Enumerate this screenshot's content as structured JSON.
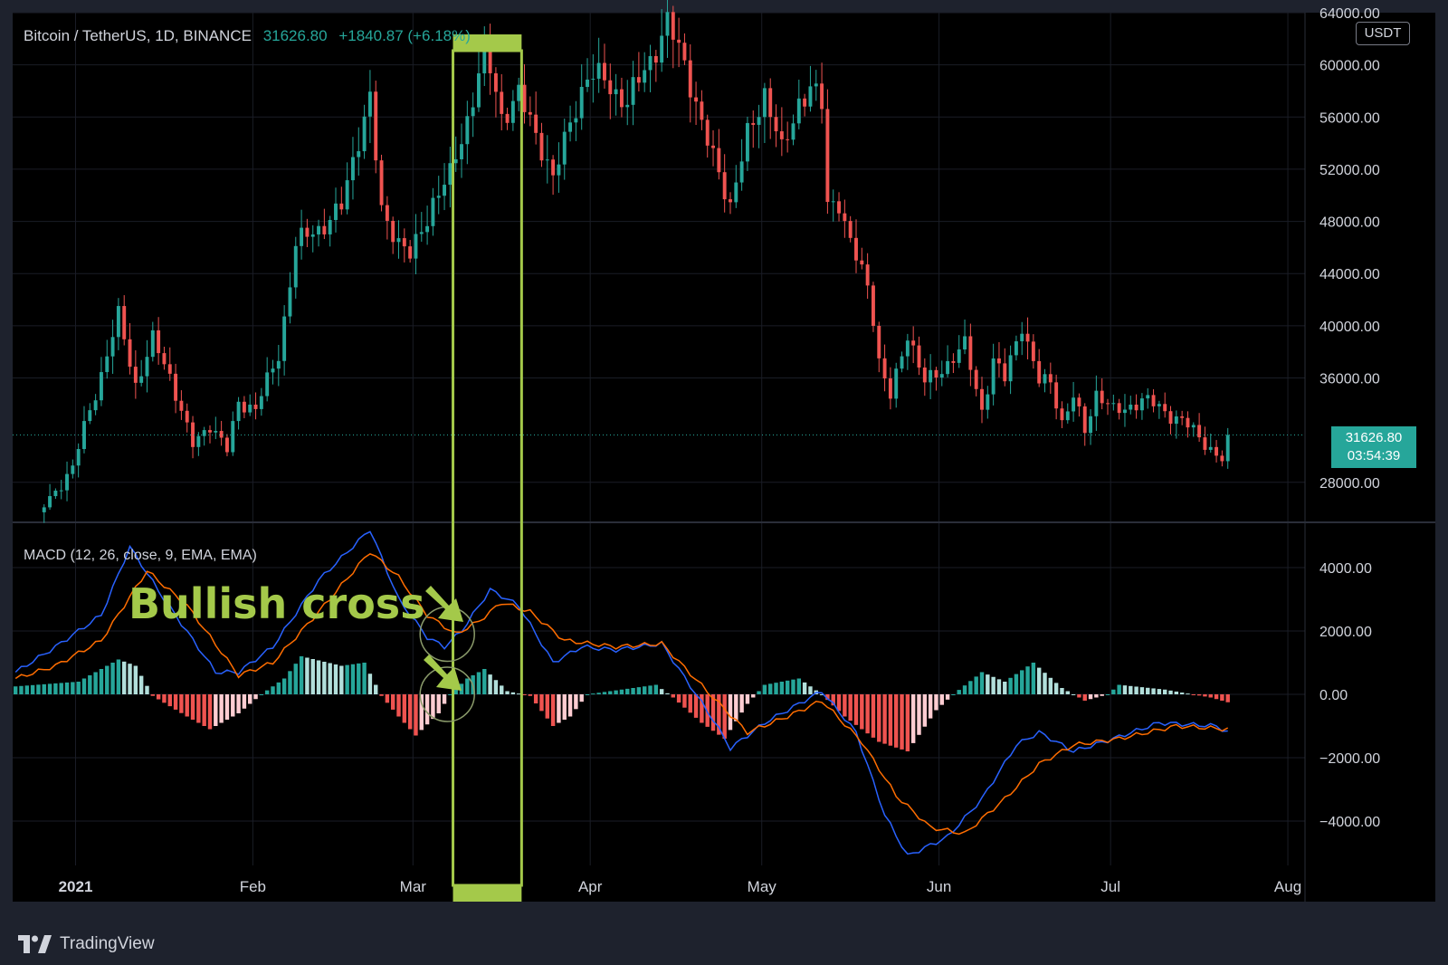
{
  "header": {
    "symbol": "Bitcoin / TetherUS, 1D, BINANCE",
    "last_price": "31626.80",
    "change": "+1840.87 (+6.18%)"
  },
  "currency_badge": "USDT",
  "price_badge": {
    "price": "31626.80",
    "countdown": "03:54:39"
  },
  "macd_legend": "MACD (12, 26, close, 9, EMA, EMA)",
  "annotation": {
    "text": "Bullish cross"
  },
  "footer": {
    "brand": "TradingView"
  },
  "colors": {
    "up": "#26a69a",
    "down": "#ef5350",
    "macd_line": "#2962ff",
    "signal_line": "#ff6d00",
    "highlight": "#a4c94a",
    "background": "#000000"
  },
  "chart_data": [
    {
      "type": "candlestick",
      "title": "Bitcoin / TetherUS, 1D, BINANCE",
      "x_ticks": [
        "2021",
        "Feb",
        "Mar",
        "Apr",
        "May",
        "Jun",
        "Jul",
        "Aug"
      ],
      "y_ticks": [
        "64000.00",
        "60000.00",
        "56000.00",
        "52000.00",
        "48000.00",
        "44000.00",
        "40000.00",
        "36000.00",
        "28000.00"
      ],
      "ylim": [
        25000,
        64000
      ],
      "x_range": [
        "2020-12-21",
        "2021-08-04"
      ],
      "last_close": 31626.8,
      "highlight_period": [
        "2021-03-08",
        "2021-03-20"
      ],
      "close_anchors": [
        [
          "2020-12-26",
          26300
        ],
        [
          "2020-12-31",
          29000
        ],
        [
          "2021-01-02",
          32200
        ],
        [
          "2021-01-08",
          40600
        ],
        [
          "2021-01-11",
          35500
        ],
        [
          "2021-01-14",
          39000
        ],
        [
          "2021-01-17",
          36000
        ],
        [
          "2021-01-21",
          31000
        ],
        [
          "2021-01-24",
          32300
        ],
        [
          "2021-01-27",
          30500
        ],
        [
          "2021-01-29",
          34300
        ],
        [
          "2021-02-01",
          33500
        ],
        [
          "2021-02-05",
          37900
        ],
        [
          "2021-02-08",
          46200
        ],
        [
          "2021-02-12",
          47400
        ],
        [
          "2021-02-16",
          49200
        ],
        [
          "2021-02-21",
          57500
        ],
        [
          "2021-02-23",
          48900
        ],
        [
          "2021-02-26",
          46300
        ],
        [
          "2021-02-28",
          45300
        ],
        [
          "2021-03-04",
          49600
        ],
        [
          "2021-03-07",
          51300
        ],
        [
          "2021-03-10",
          56000
        ],
        [
          "2021-03-13",
          61200
        ],
        [
          "2021-03-16",
          55900
        ],
        [
          "2021-03-19",
          58000
        ],
        [
          "2021-03-22",
          54500
        ],
        [
          "2021-03-25",
          51300
        ],
        [
          "2021-03-28",
          55800
        ],
        [
          "2021-03-31",
          58800
        ],
        [
          "2021-04-03",
          59200
        ],
        [
          "2021-04-07",
          56800
        ],
        [
          "2021-04-10",
          59700
        ],
        [
          "2021-04-14",
          63200
        ],
        [
          "2021-04-17",
          60000
        ],
        [
          "2021-04-20",
          55600
        ],
        [
          "2021-04-23",
          51700
        ],
        [
          "2021-04-25",
          49000
        ],
        [
          "2021-04-28",
          54800
        ],
        [
          "2021-05-01",
          57800
        ],
        [
          "2021-05-04",
          53200
        ],
        [
          "2021-05-07",
          57400
        ],
        [
          "2021-05-09",
          58200
        ],
        [
          "2021-05-11",
          56700
        ],
        [
          "2021-05-12",
          49200
        ],
        [
          "2021-05-14",
          49700
        ],
        [
          "2021-05-16",
          46400
        ],
        [
          "2021-05-19",
          42900
        ],
        [
          "2021-05-20",
          40600
        ],
        [
          "2021-05-21",
          37300
        ],
        [
          "2021-05-23",
          34700
        ],
        [
          "2021-05-26",
          39300
        ],
        [
          "2021-05-29",
          35700
        ],
        [
          "2021-06-01",
          36700
        ],
        [
          "2021-06-05",
          38400
        ],
        [
          "2021-06-08",
          33600
        ],
        [
          "2021-06-10",
          37400
        ],
        [
          "2021-06-12",
          35800
        ],
        [
          "2021-06-15",
          40200
        ],
        [
          "2021-06-18",
          35800
        ],
        [
          "2021-06-20",
          35600
        ],
        [
          "2021-06-22",
          32500
        ],
        [
          "2021-06-24",
          34700
        ],
        [
          "2021-06-26",
          32000
        ],
        [
          "2021-06-28",
          34700
        ],
        [
          "2021-07-01",
          33500
        ],
        [
          "2021-07-06",
          34200
        ],
        [
          "2021-07-09",
          33800
        ],
        [
          "2021-07-13",
          32700
        ],
        [
          "2021-07-16",
          31400
        ],
        [
          "2021-07-20",
          29800
        ],
        [
          "2021-07-21",
          31626.8
        ]
      ]
    },
    {
      "type": "macd",
      "title": "MACD (12, 26, close, 9, EMA, EMA)",
      "y_ticks": [
        "4000.00",
        "2000.00",
        "0.00",
        "−2000.00",
        "−4000.00"
      ],
      "ylim": [
        -5400,
        5400
      ],
      "x_range": [
        "2020-12-21",
        "2021-08-04"
      ],
      "series": [
        {
          "name": "MACD",
          "points": [
            [
              "2020-12-21",
              700
            ],
            [
              "2020-12-28",
              1500
            ],
            [
              "2021-01-05",
              2500
            ],
            [
              "2021-01-10",
              4650
            ],
            [
              "2021-01-16",
              3000
            ],
            [
              "2021-01-25",
              700
            ],
            [
              "2021-01-29",
              700
            ],
            [
              "2021-02-04",
              1500
            ],
            [
              "2021-02-12",
              3600
            ],
            [
              "2021-02-21",
              5200
            ],
            [
              "2021-02-26",
              3000
            ],
            [
              "2021-03-03",
              1800
            ],
            [
              "2021-03-06",
              1500
            ],
            [
              "2021-03-09",
              2000
            ],
            [
              "2021-03-14",
              3300
            ],
            [
              "2021-03-19",
              2800
            ],
            [
              "2021-03-25",
              1000
            ],
            [
              "2021-03-30",
              1500
            ],
            [
              "2021-04-05",
              1400
            ],
            [
              "2021-04-13",
              1600
            ],
            [
              "2021-04-22",
              -800
            ],
            [
              "2021-04-25",
              -1700
            ],
            [
              "2021-05-01",
              -900
            ],
            [
              "2021-05-07",
              -300
            ],
            [
              "2021-05-11",
              100
            ],
            [
              "2021-05-17",
              -1200
            ],
            [
              "2021-05-22",
              -3800
            ],
            [
              "2021-05-26",
              -5100
            ],
            [
              "2021-06-02",
              -4500
            ],
            [
              "2021-06-08",
              -3300
            ],
            [
              "2021-06-14",
              -1600
            ],
            [
              "2021-06-18",
              -1200
            ],
            [
              "2021-06-24",
              -1800
            ],
            [
              "2021-07-01",
              -1400
            ],
            [
              "2021-07-09",
              -900
            ],
            [
              "2021-07-19",
              -1000
            ],
            [
              "2021-07-21",
              -1200
            ]
          ]
        },
        {
          "name": "Signal",
          "points": [
            [
              "2020-12-21",
              500
            ],
            [
              "2020-12-28",
              900
            ],
            [
              "2021-01-05",
              1700
            ],
            [
              "2021-01-13",
              3900
            ],
            [
              "2021-01-20",
              2800
            ],
            [
              "2021-01-29",
              600
            ],
            [
              "2021-02-04",
              1000
            ],
            [
              "2021-02-12",
              2600
            ],
            [
              "2021-02-21",
              4500
            ],
            [
              "2021-02-26",
              3700
            ],
            [
              "2021-03-03",
              2500
            ],
            [
              "2021-03-08",
              1900
            ],
            [
              "2021-03-12",
              2300
            ],
            [
              "2021-03-16",
              2900
            ],
            [
              "2021-03-21",
              2600
            ],
            [
              "2021-03-27",
              1700
            ],
            [
              "2021-04-05",
              1500
            ],
            [
              "2021-04-13",
              1600
            ],
            [
              "2021-04-22",
              -100
            ],
            [
              "2021-04-28",
              -1200
            ],
            [
              "2021-05-05",
              -700
            ],
            [
              "2021-05-11",
              -200
            ],
            [
              "2021-05-18",
              -1500
            ],
            [
              "2021-05-24",
              -3200
            ],
            [
              "2021-05-30",
              -4200
            ],
            [
              "2021-06-05",
              -4400
            ],
            [
              "2021-06-12",
              -3300
            ],
            [
              "2021-06-18",
              -2200
            ],
            [
              "2021-06-24",
              -1600
            ],
            [
              "2021-07-02",
              -1400
            ],
            [
              "2021-07-12",
              -1000
            ],
            [
              "2021-07-21",
              -1100
            ]
          ]
        }
      ],
      "histogram": [
        [
          "2020-12-21",
          250
        ],
        [
          "2021-01-01",
          400
        ],
        [
          "2021-01-08",
          1100
        ],
        [
          "2021-01-11",
          900
        ],
        [
          "2021-01-14",
          -50
        ],
        [
          "2021-01-20",
          -700
        ],
        [
          "2021-01-24",
          -1100
        ],
        [
          "2021-01-29",
          -600
        ],
        [
          "2021-02-02",
          0
        ],
        [
          "2021-02-06",
          500
        ],
        [
          "2021-02-09",
          1200
        ],
        [
          "2021-02-16",
          900
        ],
        [
          "2021-02-20",
          1000
        ],
        [
          "2021-02-23",
          -50
        ],
        [
          "2021-02-26",
          -700
        ],
        [
          "2021-03-01",
          -1300
        ],
        [
          "2021-03-05",
          -600
        ],
        [
          "2021-03-07",
          0
        ],
        [
          "2021-03-10",
          500
        ],
        [
          "2021-03-13",
          800
        ],
        [
          "2021-03-17",
          100
        ],
        [
          "2021-03-21",
          -50
        ],
        [
          "2021-03-25",
          -1000
        ],
        [
          "2021-03-28",
          -700
        ],
        [
          "2021-03-31",
          0
        ],
        [
          "2021-04-04",
          100
        ],
        [
          "2021-04-12",
          300
        ],
        [
          "2021-04-15",
          -100
        ],
        [
          "2021-04-20",
          -900
        ],
        [
          "2021-04-24",
          -1400
        ],
        [
          "2021-04-28",
          -300
        ],
        [
          "2021-05-01",
          300
        ],
        [
          "2021-05-07",
          500
        ],
        [
          "2021-05-11",
          0
        ],
        [
          "2021-05-15",
          -700
        ],
        [
          "2021-05-21",
          -1500
        ],
        [
          "2021-05-26",
          -1800
        ],
        [
          "2021-05-31",
          -500
        ],
        [
          "2021-06-03",
          0
        ],
        [
          "2021-06-08",
          700
        ],
        [
          "2021-06-12",
          400
        ],
        [
          "2021-06-17",
          1000
        ],
        [
          "2021-06-22",
          200
        ],
        [
          "2021-06-26",
          -200
        ],
        [
          "2021-06-30",
          0
        ],
        [
          "2021-07-02",
          300
        ],
        [
          "2021-07-10",
          150
        ],
        [
          "2021-07-18",
          -100
        ],
        [
          "2021-07-21",
          -250
        ]
      ],
      "highlight_period": [
        "2021-03-08",
        "2021-03-20"
      ],
      "annotations": [
        "Bullish cross"
      ]
    }
  ]
}
